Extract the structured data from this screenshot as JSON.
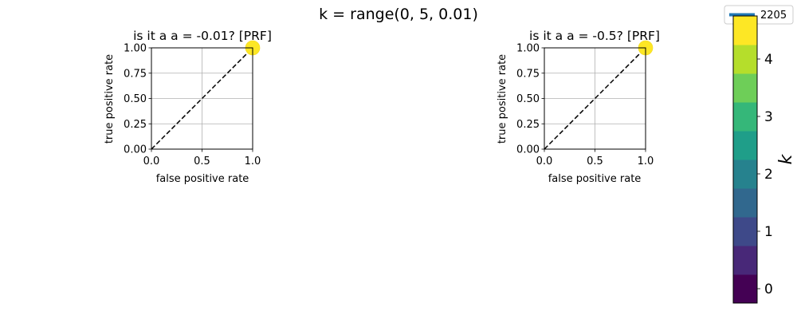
{
  "figure": {
    "suptitle": "k = range(0, 5, 0.01)"
  },
  "legend": {
    "entries": [
      {
        "label": "2205",
        "color": "#1f77b4"
      }
    ]
  },
  "colorbar": {
    "label": "k",
    "ticks": [
      0,
      1,
      2,
      3,
      4
    ],
    "tick_labels": [
      "0",
      "1",
      "2",
      "3",
      "4"
    ],
    "range": [
      -0.25,
      4.75
    ],
    "colors": [
      "#440154",
      "#482878",
      "#3e4989",
      "#31688e",
      "#26828e",
      "#1f9e89",
      "#35b779",
      "#6ece58",
      "#b5de2b",
      "#fde725"
    ]
  },
  "chart_data": [
    {
      "type": "line",
      "title": "is it a a = -0.01? [PRF]",
      "xlabel": "false positive rate",
      "ylabel": "true positive rate",
      "xlim": [
        0.0,
        1.0
      ],
      "ylim": [
        0.0,
        1.0
      ],
      "grid": true,
      "xticks": [
        "0.0",
        "0.5",
        "1.0"
      ],
      "yticks": [
        "0.00",
        "0.25",
        "0.50",
        "0.75",
        "1.00"
      ],
      "diagonal": {
        "x": [
          0,
          1
        ],
        "y": [
          0,
          1
        ],
        "style": "dashed",
        "color": "#000000"
      },
      "points": [
        {
          "x": 1.0,
          "y": 1.0,
          "k": 4.6,
          "color": "#fde725"
        }
      ]
    },
    {
      "type": "line",
      "title": "is it a a = -0.5? [PRF]",
      "xlabel": "false positive rate",
      "ylabel": "true positive rate",
      "xlim": [
        0.0,
        1.0
      ],
      "ylim": [
        0.0,
        1.0
      ],
      "grid": true,
      "xticks": [
        "0.0",
        "0.5",
        "1.0"
      ],
      "yticks": [
        "0.00",
        "0.25",
        "0.50",
        "0.75",
        "1.00"
      ],
      "diagonal": {
        "x": [
          0,
          1
        ],
        "y": [
          0,
          1
        ],
        "style": "dashed",
        "color": "#000000"
      },
      "points": [
        {
          "x": 1.0,
          "y": 1.0,
          "k": 4.6,
          "color": "#fde725"
        }
      ]
    }
  ]
}
